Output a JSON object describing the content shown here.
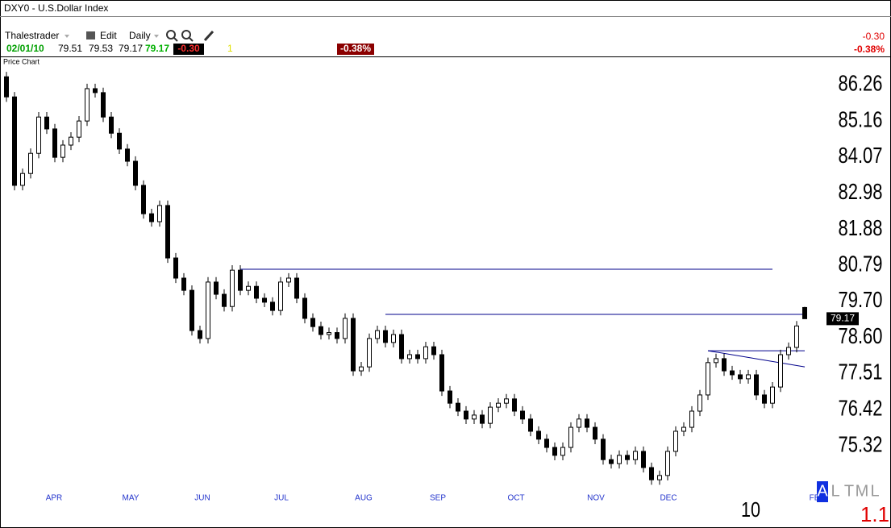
{
  "header": {
    "symbol_title": "DXY0 - U.S.Dollar Index",
    "user": "Thalestrader",
    "edit": "Edit",
    "period": "Daily",
    "date": "02/01/10",
    "change": "-0.30",
    "count": "1",
    "change_pct": "-0.38%"
  },
  "chart_data": {
    "type": "candlestick",
    "panel_label": "Price Chart",
    "open": [
      86.5,
      85.89,
      83.21,
      83.57,
      84.18,
      85.28,
      84.92,
      84.06,
      84.43,
      84.67,
      85.16,
      86.14,
      86.02,
      85.28,
      84.79,
      84.31,
      83.94,
      83.21,
      82.35,
      82.11,
      82.6,
      81.01,
      80.4,
      80.03,
      78.81,
      78.57,
      80.28,
      79.91,
      79.54,
      80.64,
      80.03,
      80.15,
      79.79,
      79.67,
      79.42,
      80.28,
      80.4,
      79.79,
      79.18,
      78.93,
      78.69,
      78.75,
      78.57,
      79.18,
      77.59,
      77.71,
      78.57,
      78.81,
      78.45,
      78.69,
      77.96,
      78.08,
      77.96,
      78.32,
      78.08,
      76.98,
      76.61,
      76.37,
      76.13,
      76.25,
      76.0,
      76.49,
      76.61,
      76.74,
      76.37,
      76.13,
      75.76,
      75.52,
      75.27,
      75.03,
      75.27,
      75.88,
      76.13,
      75.88,
      75.52,
      74.9,
      74.78,
      75.03,
      74.9,
      75.15,
      74.66,
      74.29,
      74.42,
      75.15,
      75.76,
      75.88,
      76.37,
      76.86,
      77.84,
      77.96,
      77.59,
      77.47,
      77.35,
      77.47,
      76.86,
      76.61,
      77.1,
      78.08,
      78.3,
      79.51
    ],
    "high": [
      86.65,
      86.04,
      83.72,
      84.33,
      85.43,
      85.43,
      85.07,
      84.58,
      84.82,
      85.31,
      86.29,
      86.29,
      86.17,
      85.43,
      84.94,
      84.46,
      84.09,
      83.36,
      82.5,
      82.75,
      82.75,
      81.16,
      80.55,
      80.18,
      78.96,
      80.43,
      80.43,
      80.06,
      80.79,
      80.79,
      80.3,
      80.3,
      79.94,
      79.82,
      80.43,
      80.55,
      80.55,
      79.94,
      79.33,
      79.08,
      78.9,
      78.9,
      79.33,
      79.33,
      77.86,
      78.72,
      78.96,
      78.96,
      78.84,
      78.84,
      78.23,
      78.23,
      78.47,
      78.47,
      78.23,
      77.13,
      76.76,
      76.52,
      76.4,
      76.4,
      76.64,
      76.76,
      76.89,
      76.89,
      76.52,
      76.28,
      75.91,
      75.67,
      75.42,
      75.42,
      76.03,
      76.28,
      76.28,
      76.03,
      75.67,
      75.05,
      75.18,
      75.18,
      75.3,
      75.3,
      74.81,
      74.57,
      75.3,
      75.91,
      76.03,
      76.52,
      77.01,
      77.99,
      78.11,
      78.11,
      77.74,
      77.62,
      77.62,
      77.62,
      77.01,
      77.25,
      78.23,
      78.45,
      79.1,
      79.53
    ],
    "low": [
      85.74,
      83.06,
      83.06,
      83.42,
      84.03,
      84.77,
      83.91,
      83.91,
      84.28,
      84.52,
      85.01,
      85.87,
      85.13,
      84.64,
      84.16,
      83.79,
      83.06,
      82.2,
      81.96,
      81.96,
      80.86,
      80.25,
      79.88,
      78.66,
      78.42,
      78.42,
      79.76,
      79.39,
      79.39,
      79.88,
      79.88,
      79.64,
      79.52,
      79.27,
      79.27,
      80.13,
      79.64,
      79.03,
      78.78,
      78.54,
      78.54,
      78.42,
      78.42,
      77.44,
      77.44,
      77.56,
      78.42,
      78.3,
      78.3,
      77.81,
      77.81,
      77.81,
      77.81,
      77.93,
      76.83,
      76.46,
      76.22,
      75.98,
      75.98,
      75.85,
      75.85,
      76.34,
      76.46,
      76.22,
      75.98,
      75.61,
      75.37,
      75.12,
      74.88,
      74.88,
      75.12,
      75.73,
      75.73,
      75.37,
      74.75,
      74.63,
      74.63,
      74.75,
      74.75,
      74.51,
      74.14,
      74.14,
      74.27,
      75.0,
      75.61,
      75.73,
      76.22,
      76.71,
      77.69,
      77.44,
      77.32,
      77.2,
      77.2,
      76.71,
      76.46,
      76.46,
      76.95,
      77.93,
      78.15,
      79.17
    ],
    "close": [
      85.89,
      83.21,
      83.57,
      84.18,
      85.28,
      84.92,
      84.06,
      84.43,
      84.67,
      85.16,
      86.14,
      86.02,
      85.28,
      84.79,
      84.31,
      83.94,
      83.21,
      82.35,
      82.11,
      82.6,
      81.01,
      80.4,
      80.03,
      78.81,
      78.57,
      80.28,
      79.91,
      79.54,
      80.64,
      80.03,
      80.15,
      79.79,
      79.67,
      79.42,
      80.28,
      80.4,
      79.79,
      79.18,
      78.93,
      78.69,
      78.75,
      78.57,
      79.18,
      77.59,
      77.71,
      78.57,
      78.81,
      78.45,
      78.69,
      77.96,
      78.08,
      77.96,
      78.32,
      78.08,
      76.98,
      76.61,
      76.37,
      76.13,
      76.25,
      76.0,
      76.49,
      76.61,
      76.74,
      76.37,
      76.13,
      75.76,
      75.52,
      75.27,
      75.03,
      75.27,
      75.88,
      76.13,
      75.88,
      75.52,
      74.9,
      74.78,
      75.03,
      74.9,
      75.15,
      74.66,
      74.29,
      74.42,
      75.15,
      75.76,
      75.88,
      76.37,
      76.86,
      77.84,
      77.96,
      77.59,
      77.47,
      77.35,
      77.47,
      76.86,
      76.61,
      77.1,
      78.08,
      78.3,
      78.95,
      79.17
    ],
    "ylim": [
      74.05,
      86.75
    ],
    "yticks": [
      86.26,
      85.16,
      84.07,
      82.98,
      81.88,
      80.79,
      {
        "value": 79.7,
        "label": "79.70"
      },
      {
        "value": 78.6,
        "label": "78.60"
      },
      77.51,
      76.42,
      75.32
    ],
    "x_labels": [
      "APR",
      "MAY",
      "JUN",
      "JUL",
      "AUG",
      "SEP",
      "OCT",
      "NOV",
      "DEC",
      "FE"
    ],
    "year_label": "10",
    "trendlines": [
      {
        "from": 29,
        "to": 95,
        "y1": 80.67,
        "y2": 80.67
      },
      {
        "from": 47,
        "to": 99,
        "y1": 79.3,
        "y2": 79.3
      },
      {
        "from": 87,
        "to": 99,
        "y1": 78.2,
        "y2": 78.2
      },
      {
        "from": 87,
        "to": 99,
        "y1": 78.2,
        "y2": 77.71
      }
    ],
    "trend_color": "#00008b",
    "up_color": "#ffffff",
    "down_color": "#000000"
  },
  "footer": {
    "letters": [
      "A",
      "L",
      "T",
      "M",
      "L"
    ],
    "zoom": "1.1"
  }
}
